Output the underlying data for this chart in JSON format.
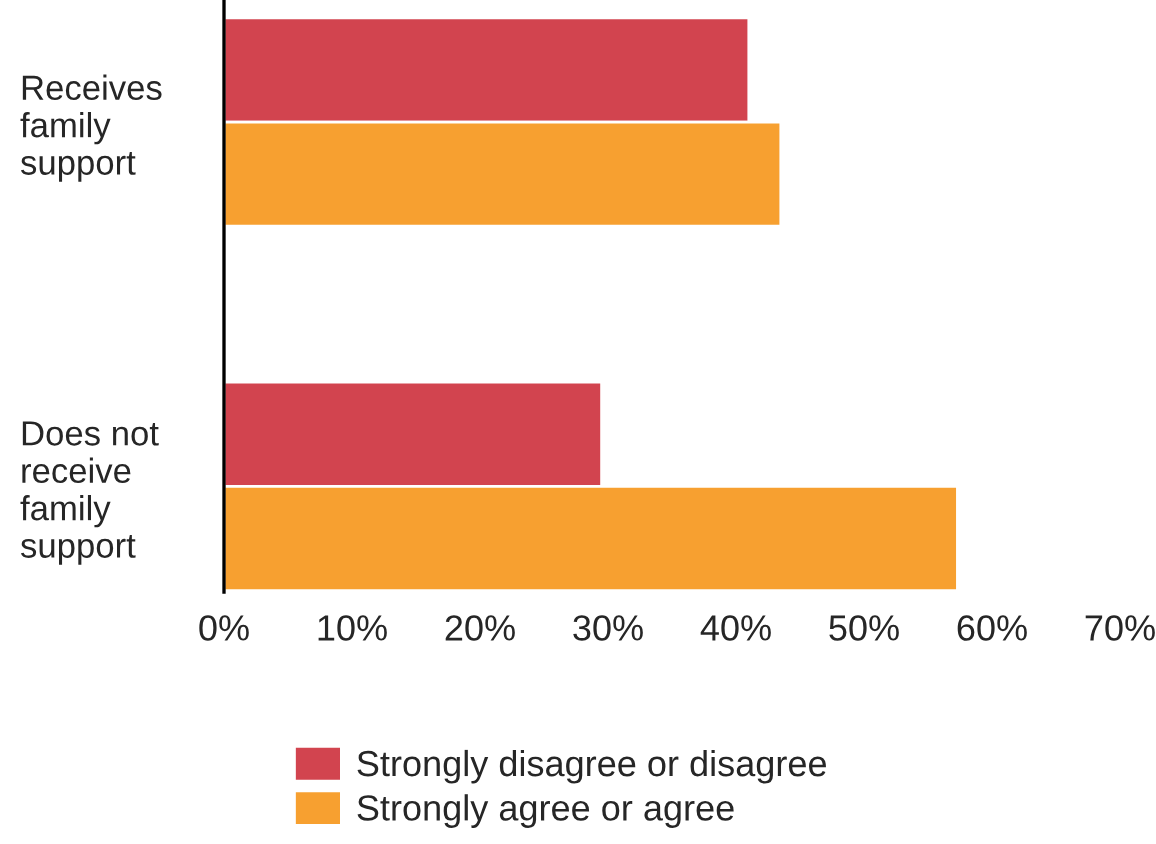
{
  "chart_data": {
    "type": "bar",
    "orientation": "horizontal",
    "categories": [
      "Receives\nfamily\nsupport",
      "Does not\nreceive\nfamily\nsupport"
    ],
    "series": [
      {
        "name": "Strongly disagree or disagree",
        "color": "#d2444f",
        "values": [
          41,
          29.5
        ]
      },
      {
        "name": "Strongly agree or agree",
        "color": "#f7a030",
        "values": [
          43.5,
          57.3
        ]
      }
    ],
    "xlim": [
      0,
      70
    ],
    "xticks": [
      {
        "value": 0,
        "label": "0%"
      },
      {
        "value": 10,
        "label": "10%"
      },
      {
        "value": 20,
        "label": "20%"
      },
      {
        "value": 30,
        "label": "30%"
      },
      {
        "value": 40,
        "label": "40%"
      },
      {
        "value": 50,
        "label": "50%"
      },
      {
        "value": 60,
        "label": "60%"
      },
      {
        "value": 70,
        "label": "70%"
      }
    ],
    "grid": false,
    "legend": "bottom"
  }
}
